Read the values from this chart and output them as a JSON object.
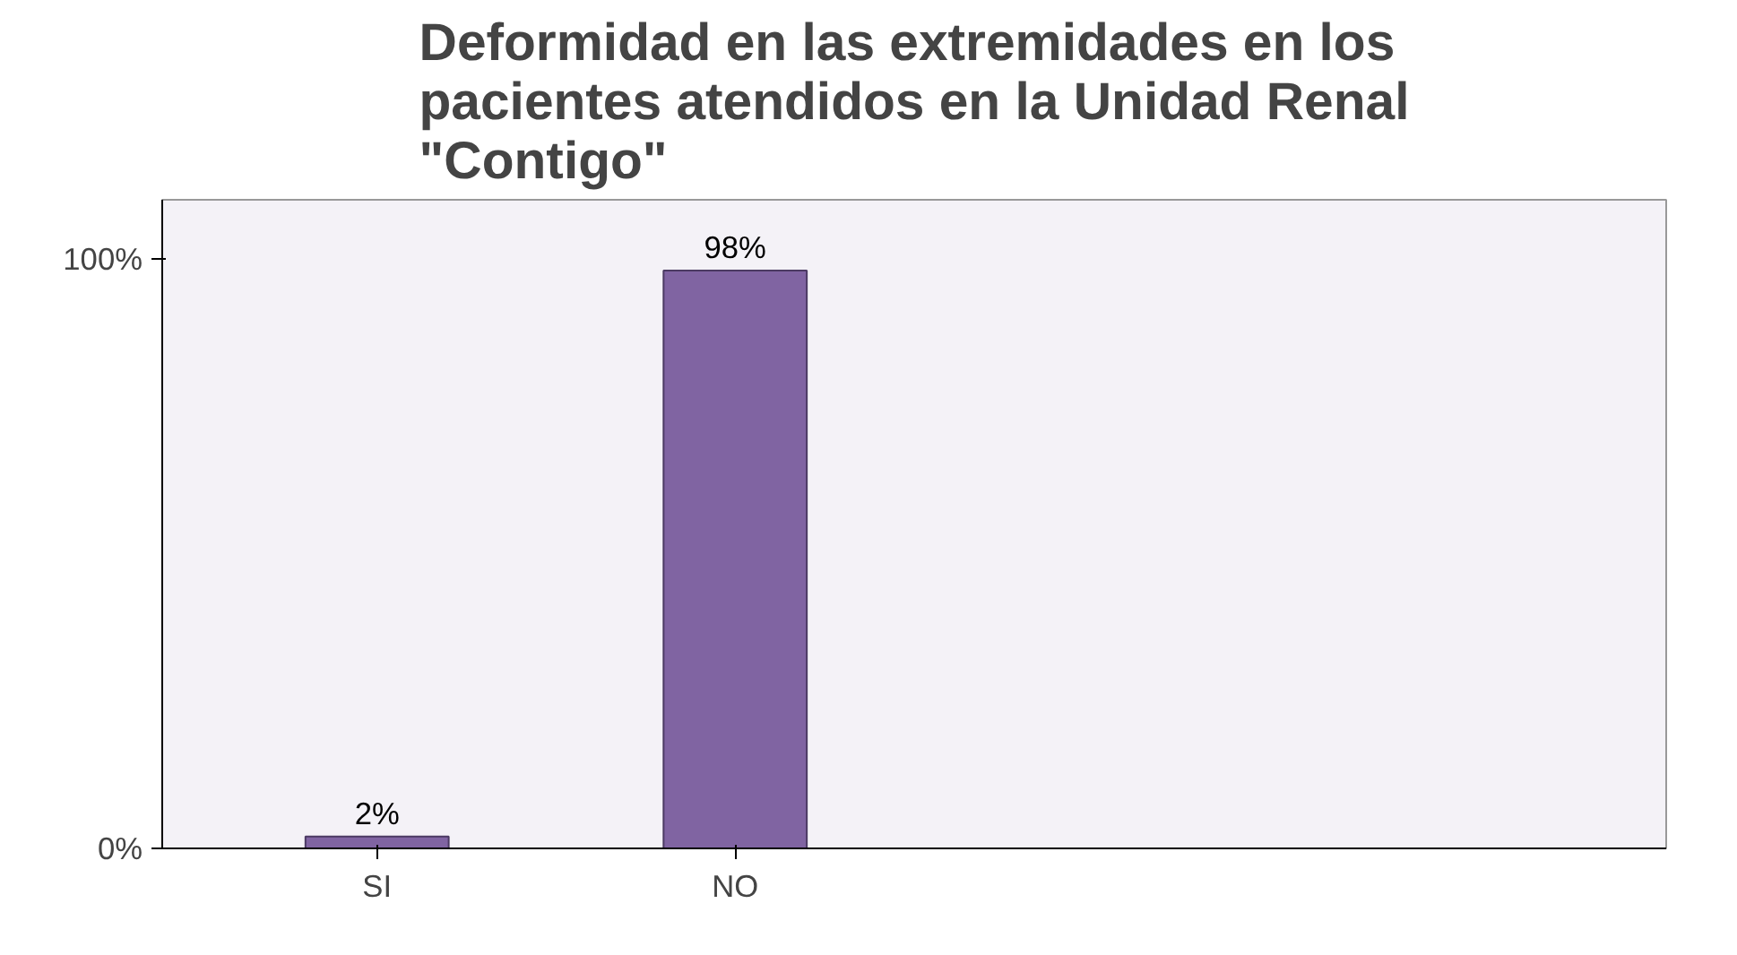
{
  "chart_data": {
    "type": "bar",
    "title": "Deformidad en las extremidades en los pacientes atendidos en la Unidad Renal \"Contigo\"",
    "categories": [
      "SI",
      "NO"
    ],
    "values": [
      2,
      98
    ],
    "color": "#8064a2",
    "ylim": [
      0,
      110
    ],
    "yticks": [
      {
        "value": 0,
        "label": "0%"
      },
      {
        "value": 100,
        "label": "100%"
      }
    ],
    "value_labels": [
      "2%",
      "98%"
    ],
    "grid": false
  }
}
